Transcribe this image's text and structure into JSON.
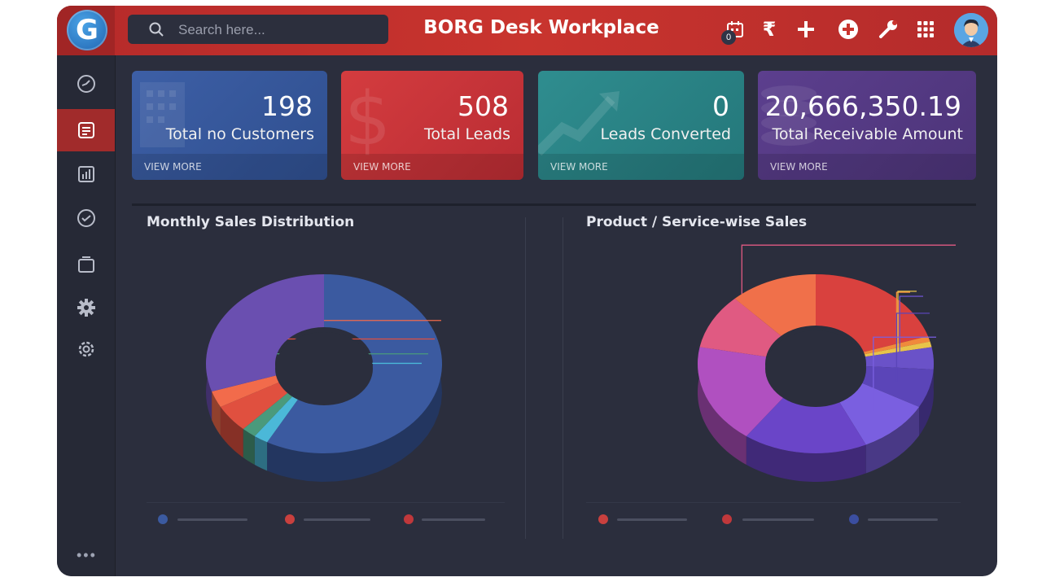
{
  "header": {
    "title": "BORG Desk Workplace",
    "logo_letter": "G",
    "search_placeholder": "Search here...",
    "calendar_count": "0",
    "currency_symbol": "₹"
  },
  "sidebar": {
    "items": [
      {
        "icon": "dashboard-icon"
      },
      {
        "icon": "document-icon",
        "active": true
      },
      {
        "icon": "bar-chart-icon"
      },
      {
        "icon": "leaf-icon"
      },
      {
        "icon": "folder-icon"
      },
      {
        "icon": "gear-icon"
      },
      {
        "icon": "settings-icon"
      }
    ],
    "more": "•••"
  },
  "cards": [
    {
      "value": "198",
      "label": "Total no Customers",
      "footer": "VIEW MORE",
      "color": "#3d5fa6"
    },
    {
      "value": "508",
      "label": "Total Leads",
      "footer": "VIEW MORE",
      "color": "#cf3a3d"
    },
    {
      "value": "0",
      "label": "Leads Converted",
      "footer": "VIEW MORE",
      "color": "#2f8d8f"
    },
    {
      "value": "20,666,350.19",
      "label": "Total Receivable Amount",
      "footer": "VIEW MORE",
      "color": "#5c3f8e"
    }
  ],
  "panels": {
    "left_title": "Monthly Sales Distribution",
    "right_title": "Product / Service-wise Sales"
  },
  "chart_data": [
    {
      "type": "pie",
      "title": "Monthly Sales Distribution",
      "slices": [
        {
          "value": 58,
          "color": "#3b5aa0"
        },
        {
          "value": 2,
          "color": "#4bb8d8"
        },
        {
          "value": 2,
          "color": "#4a9a7c"
        },
        {
          "value": 5,
          "color": "#e0503f"
        },
        {
          "value": 3,
          "color": "#f26b4b"
        },
        {
          "value": 30,
          "color": "#6a4fb0"
        }
      ],
      "legend": [
        "#3b5aa0",
        "#c9403e",
        "#c0383b"
      ]
    },
    {
      "type": "pie",
      "title": "Product / Service-wise Sales",
      "slices": [
        {
          "value": 20,
          "color": "#d9413e"
        },
        {
          "value": 1,
          "color": "#f08a3c"
        },
        {
          "value": 1,
          "color": "#e8c34a"
        },
        {
          "value": 4,
          "color": "#6a52c8"
        },
        {
          "value": 7,
          "color": "#5b45b8"
        },
        {
          "value": 10,
          "color": "#7a5fe0"
        },
        {
          "value": 17,
          "color": "#6a45c8"
        },
        {
          "value": 18,
          "color": "#b050c0"
        },
        {
          "value": 10,
          "color": "#e05a82"
        },
        {
          "value": 12,
          "color": "#f0704a"
        }
      ],
      "legend": [
        "#c9403e",
        "#c0383b",
        "#3b4ea0"
      ]
    }
  ]
}
